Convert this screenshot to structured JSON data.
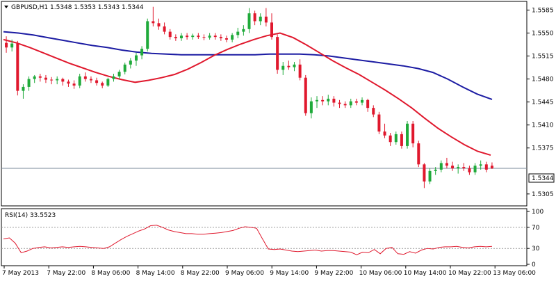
{
  "main_header": {
    "symbol": "GBPUSD,H1",
    "ohlc": "1.5348 1.5353 1.5343 1.5344"
  },
  "rsi_header": {
    "label": "RSI(14) 33.5523"
  },
  "colors": {
    "bull": "#1faa3a",
    "bear": "#e0182d",
    "ma_fast": "#e0182d",
    "ma_slow": "#1c1ca3",
    "rsi": "#e0182d",
    "grid_dotted": "#9a9a9a",
    "current_line": "#7a8a9a",
    "frame": "#000000"
  },
  "chart_data": [
    {
      "type": "candlestick",
      "symbol": "GBPUSD",
      "timeframe": "H1",
      "ylim": [
        1.529,
        1.5595
      ],
      "yticks": [
        "1.5585",
        "1.5550",
        "1.5515",
        "1.5480",
        "1.5445",
        "1.5410",
        "1.5375",
        "1.5305"
      ],
      "current_price_label": "1.5344",
      "current_price": 1.5344,
      "candles": [
        [
          1.5535,
          1.5545,
          1.552,
          1.5528
        ],
        [
          1.5528,
          1.554,
          1.5522,
          1.5534
        ],
        [
          1.5534,
          1.5538,
          1.5455,
          1.5462
        ],
        [
          1.5462,
          1.5472,
          1.545,
          1.5468
        ],
        [
          1.5468,
          1.5484,
          1.5462,
          1.548
        ],
        [
          1.548,
          1.5486,
          1.5474,
          1.5484
        ],
        [
          1.5484,
          1.5488,
          1.5476,
          1.5482
        ],
        [
          1.5482,
          1.5486,
          1.5474,
          1.5479
        ],
        [
          1.5479,
          1.5483,
          1.5472,
          1.5478
        ],
        [
          1.5478,
          1.5484,
          1.5472,
          1.548
        ],
        [
          1.548,
          1.5482,
          1.547,
          1.5476
        ],
        [
          1.5476,
          1.5479,
          1.5468,
          1.5473
        ],
        [
          1.5473,
          1.5478,
          1.5465,
          1.547
        ],
        [
          1.547,
          1.5488,
          1.5466,
          1.5484
        ],
        [
          1.5484,
          1.549,
          1.5476,
          1.548
        ],
        [
          1.548,
          1.5484,
          1.5474,
          1.5478
        ],
        [
          1.5478,
          1.5482,
          1.547,
          1.5474
        ],
        [
          1.5474,
          1.5476,
          1.5466,
          1.547
        ],
        [
          1.547,
          1.5482,
          1.5468,
          1.548
        ],
        [
          1.548,
          1.5488,
          1.5476,
          1.5484
        ],
        [
          1.5484,
          1.5494,
          1.548,
          1.5491
        ],
        [
          1.5491,
          1.5505,
          1.5487,
          1.5502
        ],
        [
          1.5502,
          1.5512,
          1.5496,
          1.5508
        ],
        [
          1.5508,
          1.552,
          1.55,
          1.5516
        ],
        [
          1.5516,
          1.553,
          1.551,
          1.5526
        ],
        [
          1.5526,
          1.5572,
          1.5522,
          1.5568
        ],
        [
          1.5568,
          1.559,
          1.556,
          1.5565
        ],
        [
          1.5565,
          1.5572,
          1.5555,
          1.556
        ],
        [
          1.556,
          1.5566,
          1.5548,
          1.5552
        ],
        [
          1.5552,
          1.5556,
          1.554,
          1.5544
        ],
        [
          1.5544,
          1.5548,
          1.5538,
          1.5542
        ],
        [
          1.5542,
          1.555,
          1.5538,
          1.5546
        ],
        [
          1.5546,
          1.555,
          1.554,
          1.5544
        ],
        [
          1.5544,
          1.5549,
          1.554,
          1.5546
        ],
        [
          1.5546,
          1.555,
          1.5541,
          1.5544
        ],
        [
          1.5544,
          1.5548,
          1.5539,
          1.5543
        ],
        [
          1.5543,
          1.555,
          1.554,
          1.5546
        ],
        [
          1.5546,
          1.555,
          1.554,
          1.5544
        ],
        [
          1.5544,
          1.5548,
          1.5538,
          1.5542
        ],
        [
          1.5542,
          1.5546,
          1.5536,
          1.554
        ],
        [
          1.554,
          1.555,
          1.5536,
          1.5547
        ],
        [
          1.5547,
          1.5558,
          1.5542,
          1.5552
        ],
        [
          1.5552,
          1.5562,
          1.5546,
          1.5556
        ],
        [
          1.5556,
          1.5588,
          1.555,
          1.558
        ],
        [
          1.558,
          1.5584,
          1.5562,
          1.5568
        ],
        [
          1.5568,
          1.558,
          1.5562,
          1.5575
        ],
        [
          1.5575,
          1.5588,
          1.556,
          1.5566
        ],
        [
          1.5566,
          1.558,
          1.554,
          1.5544
        ],
        [
          1.5544,
          1.5548,
          1.5488,
          1.5494
        ],
        [
          1.5494,
          1.5506,
          1.5486,
          1.55
        ],
        [
          1.55,
          1.5508,
          1.5494,
          1.5498
        ],
        [
          1.5498,
          1.5506,
          1.5492,
          1.5502
        ],
        [
          1.5502,
          1.551,
          1.5478,
          1.5482
        ],
        [
          1.5482,
          1.5486,
          1.5424,
          1.5428
        ],
        [
          1.5428,
          1.5452,
          1.542,
          1.5446
        ],
        [
          1.5446,
          1.5454,
          1.5436,
          1.5448
        ],
        [
          1.5448,
          1.5454,
          1.544,
          1.5446
        ],
        [
          1.5446,
          1.5456,
          1.544,
          1.545
        ],
        [
          1.545,
          1.5454,
          1.5438,
          1.5444
        ],
        [
          1.5444,
          1.5448,
          1.5436,
          1.5442
        ],
        [
          1.5442,
          1.5446,
          1.5436,
          1.544
        ],
        [
          1.544,
          1.545,
          1.5436,
          1.5446
        ],
        [
          1.5446,
          1.545,
          1.544,
          1.5444
        ],
        [
          1.5444,
          1.5452,
          1.544,
          1.5448
        ],
        [
          1.5448,
          1.545,
          1.543,
          1.5436
        ],
        [
          1.5436,
          1.544,
          1.5422,
          1.5426
        ],
        [
          1.5426,
          1.543,
          1.5396,
          1.54
        ],
        [
          1.54,
          1.5412,
          1.539,
          1.5394
        ],
        [
          1.5394,
          1.5398,
          1.5378,
          1.5384
        ],
        [
          1.5384,
          1.54,
          1.538,
          1.5396
        ],
        [
          1.5396,
          1.54,
          1.5374,
          1.5378
        ],
        [
          1.5378,
          1.5416,
          1.5374,
          1.5412
        ],
        [
          1.5412,
          1.5416,
          1.5376,
          1.5382
        ],
        [
          1.5382,
          1.5386,
          1.5346,
          1.535
        ],
        [
          1.535,
          1.5352,
          1.5314,
          1.5324
        ],
        [
          1.5324,
          1.5344,
          1.532,
          1.534
        ],
        [
          1.534,
          1.5346,
          1.5334,
          1.5342
        ],
        [
          1.5342,
          1.5356,
          1.5338,
          1.5352
        ],
        [
          1.5352,
          1.536,
          1.5344,
          1.5348
        ],
        [
          1.5348,
          1.5354,
          1.534,
          1.5344
        ],
        [
          1.5344,
          1.535,
          1.5336,
          1.5346
        ],
        [
          1.5346,
          1.5352,
          1.534,
          1.5344
        ],
        [
          1.5344,
          1.5348,
          1.5334,
          1.5338
        ],
        [
          1.5338,
          1.5352,
          1.5334,
          1.5348
        ],
        [
          1.5348,
          1.5356,
          1.5342,
          1.535
        ],
        [
          1.535,
          1.5354,
          1.5338,
          1.5342
        ],
        [
          1.5348,
          1.5353,
          1.5343,
          1.5344
        ]
      ],
      "series": [
        {
          "style": "line",
          "color": "#e0182d",
          "values": [
            1.554,
            1.5535,
            1.5528,
            1.552,
            1.5512,
            1.5504,
            1.5497,
            1.549,
            1.5484,
            1.5479,
            1.5475,
            1.5478,
            1.5482,
            1.5487,
            1.5495,
            1.5505,
            1.5516,
            1.5525,
            1.5533,
            1.554,
            1.5546,
            1.555,
            1.5543,
            1.5532,
            1.552,
            1.5508,
            1.5497,
            1.5487,
            1.5475,
            1.5463,
            1.545,
            1.5436,
            1.542,
            1.5405,
            1.5392,
            1.538,
            1.537,
            1.5364
          ]
        },
        {
          "style": "line",
          "color": "#1c1ca3",
          "values": [
            1.5552,
            1.555,
            1.5547,
            1.5543,
            1.5539,
            1.5535,
            1.5531,
            1.5528,
            1.5524,
            1.5521,
            1.5519,
            1.5518,
            1.5517,
            1.5517,
            1.5517,
            1.5517,
            1.5517,
            1.5517,
            1.5518,
            1.5518,
            1.5518,
            1.5517,
            1.5515,
            1.5512,
            1.5509,
            1.5506,
            1.5503,
            1.55,
            1.5496,
            1.549,
            1.548,
            1.5468,
            1.5457,
            1.5449
          ]
        }
      ]
    },
    {
      "type": "line",
      "name": "RSI(14)",
      "ylim": [
        0,
        100
      ],
      "yticks": [
        "100",
        "70",
        "30",
        "0"
      ],
      "levels": [
        70,
        30
      ],
      "values": [
        48,
        50,
        40,
        22,
        25,
        30,
        32,
        33,
        31,
        32,
        33,
        32,
        33,
        34,
        33,
        32,
        31,
        30,
        33,
        40,
        47,
        53,
        58,
        63,
        67,
        73,
        74,
        70,
        65,
        62,
        60,
        58,
        58,
        57,
        57,
        58,
        59,
        60,
        62,
        64,
        68,
        71,
        70,
        68,
        48,
        29,
        28,
        29,
        27,
        25,
        24,
        25,
        26,
        27,
        25,
        26,
        26,
        25,
        24,
        23,
        18,
        23,
        22,
        28,
        20,
        30,
        32,
        20,
        19,
        24,
        21,
        27,
        30,
        29,
        32,
        33,
        33,
        34,
        32,
        31,
        33,
        34,
        33,
        34
      ]
    }
  ],
  "x_axis": {
    "labels": [
      "7 May 2013",
      "7 May 22:00",
      "8 May 06:00",
      "8 May 14:00",
      "8 May 22:00",
      "9 May 06:00",
      "9 May 14:00",
      "9 May 22:00",
      "10 May 06:00",
      "10 May 14:00",
      "10 May 22:00",
      "13 May 06:00"
    ]
  }
}
